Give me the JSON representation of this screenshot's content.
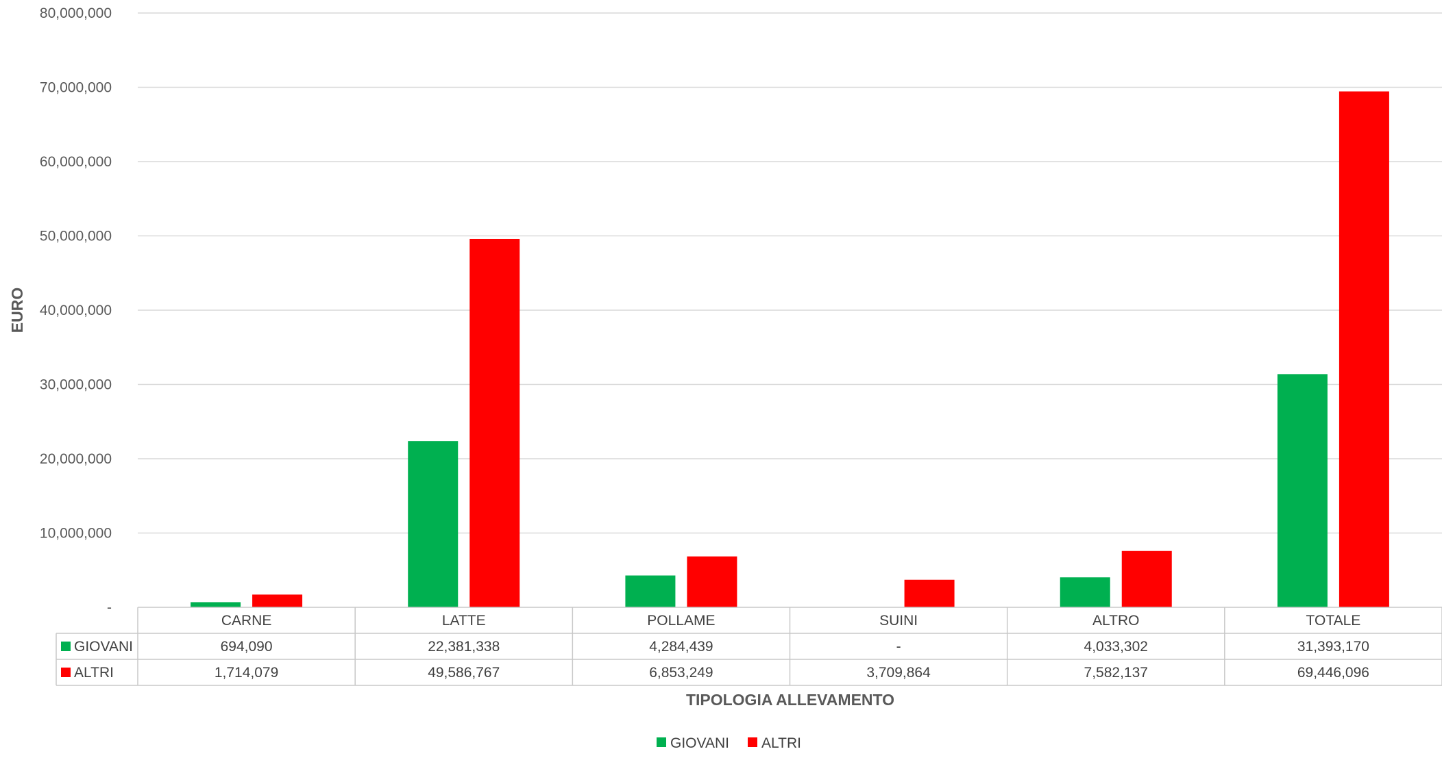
{
  "chart_data": {
    "type": "bar",
    "title": "",
    "xlabel": "TIPOLOGIA ALLEVAMENTO",
    "ylabel": "EURO",
    "ylim": [
      0,
      80000000
    ],
    "yticks": [
      0,
      10000000,
      20000000,
      30000000,
      40000000,
      50000000,
      60000000,
      70000000,
      80000000
    ],
    "ytick_labels": [
      "-",
      "10,000,000",
      "20,000,000",
      "30,000,000",
      "40,000,000",
      "50,000,000",
      "60,000,000",
      "70,000,000",
      "80,000,000"
    ],
    "grid": true,
    "legend": "bottom",
    "data_table": true,
    "categories": [
      "CARNE",
      "LATTE",
      "POLLAME",
      "SUINI",
      "ALTRO",
      "TOTALE"
    ],
    "series": [
      {
        "name": "GIOVANI",
        "color": "#00b050",
        "values": [
          694090,
          22381338,
          4284439,
          0,
          4033302,
          31393170
        ],
        "labels": [
          "694,090",
          "22,381,338",
          "4,284,439",
          "-",
          "4,033,302",
          "31,393,170"
        ]
      },
      {
        "name": "ALTRI",
        "color": "#ff0000",
        "values": [
          1714079,
          49586767,
          6853249,
          3709864,
          7582137,
          69446096
        ],
        "labels": [
          "1,714,079",
          "49,586,767",
          "6,853,249",
          "3,709,864",
          "7,582,137",
          "69,446,096"
        ]
      }
    ]
  }
}
